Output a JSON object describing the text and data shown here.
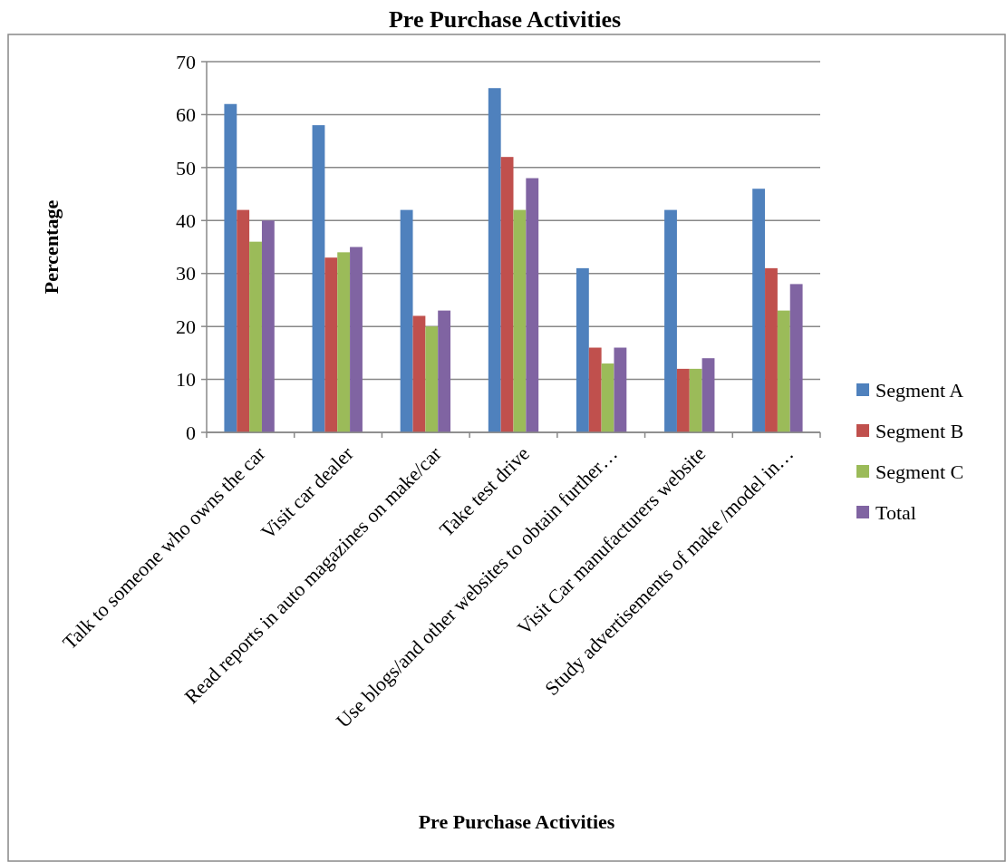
{
  "chart_data": {
    "type": "bar",
    "title": "Pre Purchase Activities",
    "xlabel": "Pre Purchase Activities",
    "ylabel": "Percentage",
    "categories": [
      "Talk to someone who owns the car",
      "Visit car dealer",
      "Read reports in auto magazines on make/car",
      "Take test drive",
      "Use blogs/and other websites to obtain further…",
      "Visit Car manufacturers website",
      "Study advertisements of make /model in…"
    ],
    "series": [
      {
        "name": "Segment A",
        "color": "#4f81bd",
        "values": [
          62,
          58,
          42,
          65,
          31,
          42,
          46
        ]
      },
      {
        "name": "Segment B",
        "color": "#c0504d",
        "values": [
          42,
          33,
          22,
          52,
          16,
          12,
          31
        ]
      },
      {
        "name": "Segment C",
        "color": "#9bbb59",
        "values": [
          36,
          34,
          20,
          42,
          13,
          12,
          23
        ]
      },
      {
        "name": "Total",
        "color": "#8064a2",
        "values": [
          40,
          35,
          23,
          48,
          16,
          14,
          28
        ]
      }
    ],
    "ylim": [
      0,
      70
    ],
    "yticks": [
      0,
      10,
      20,
      30,
      40,
      50,
      60,
      70
    ],
    "grid": "y",
    "legend": "right"
  }
}
